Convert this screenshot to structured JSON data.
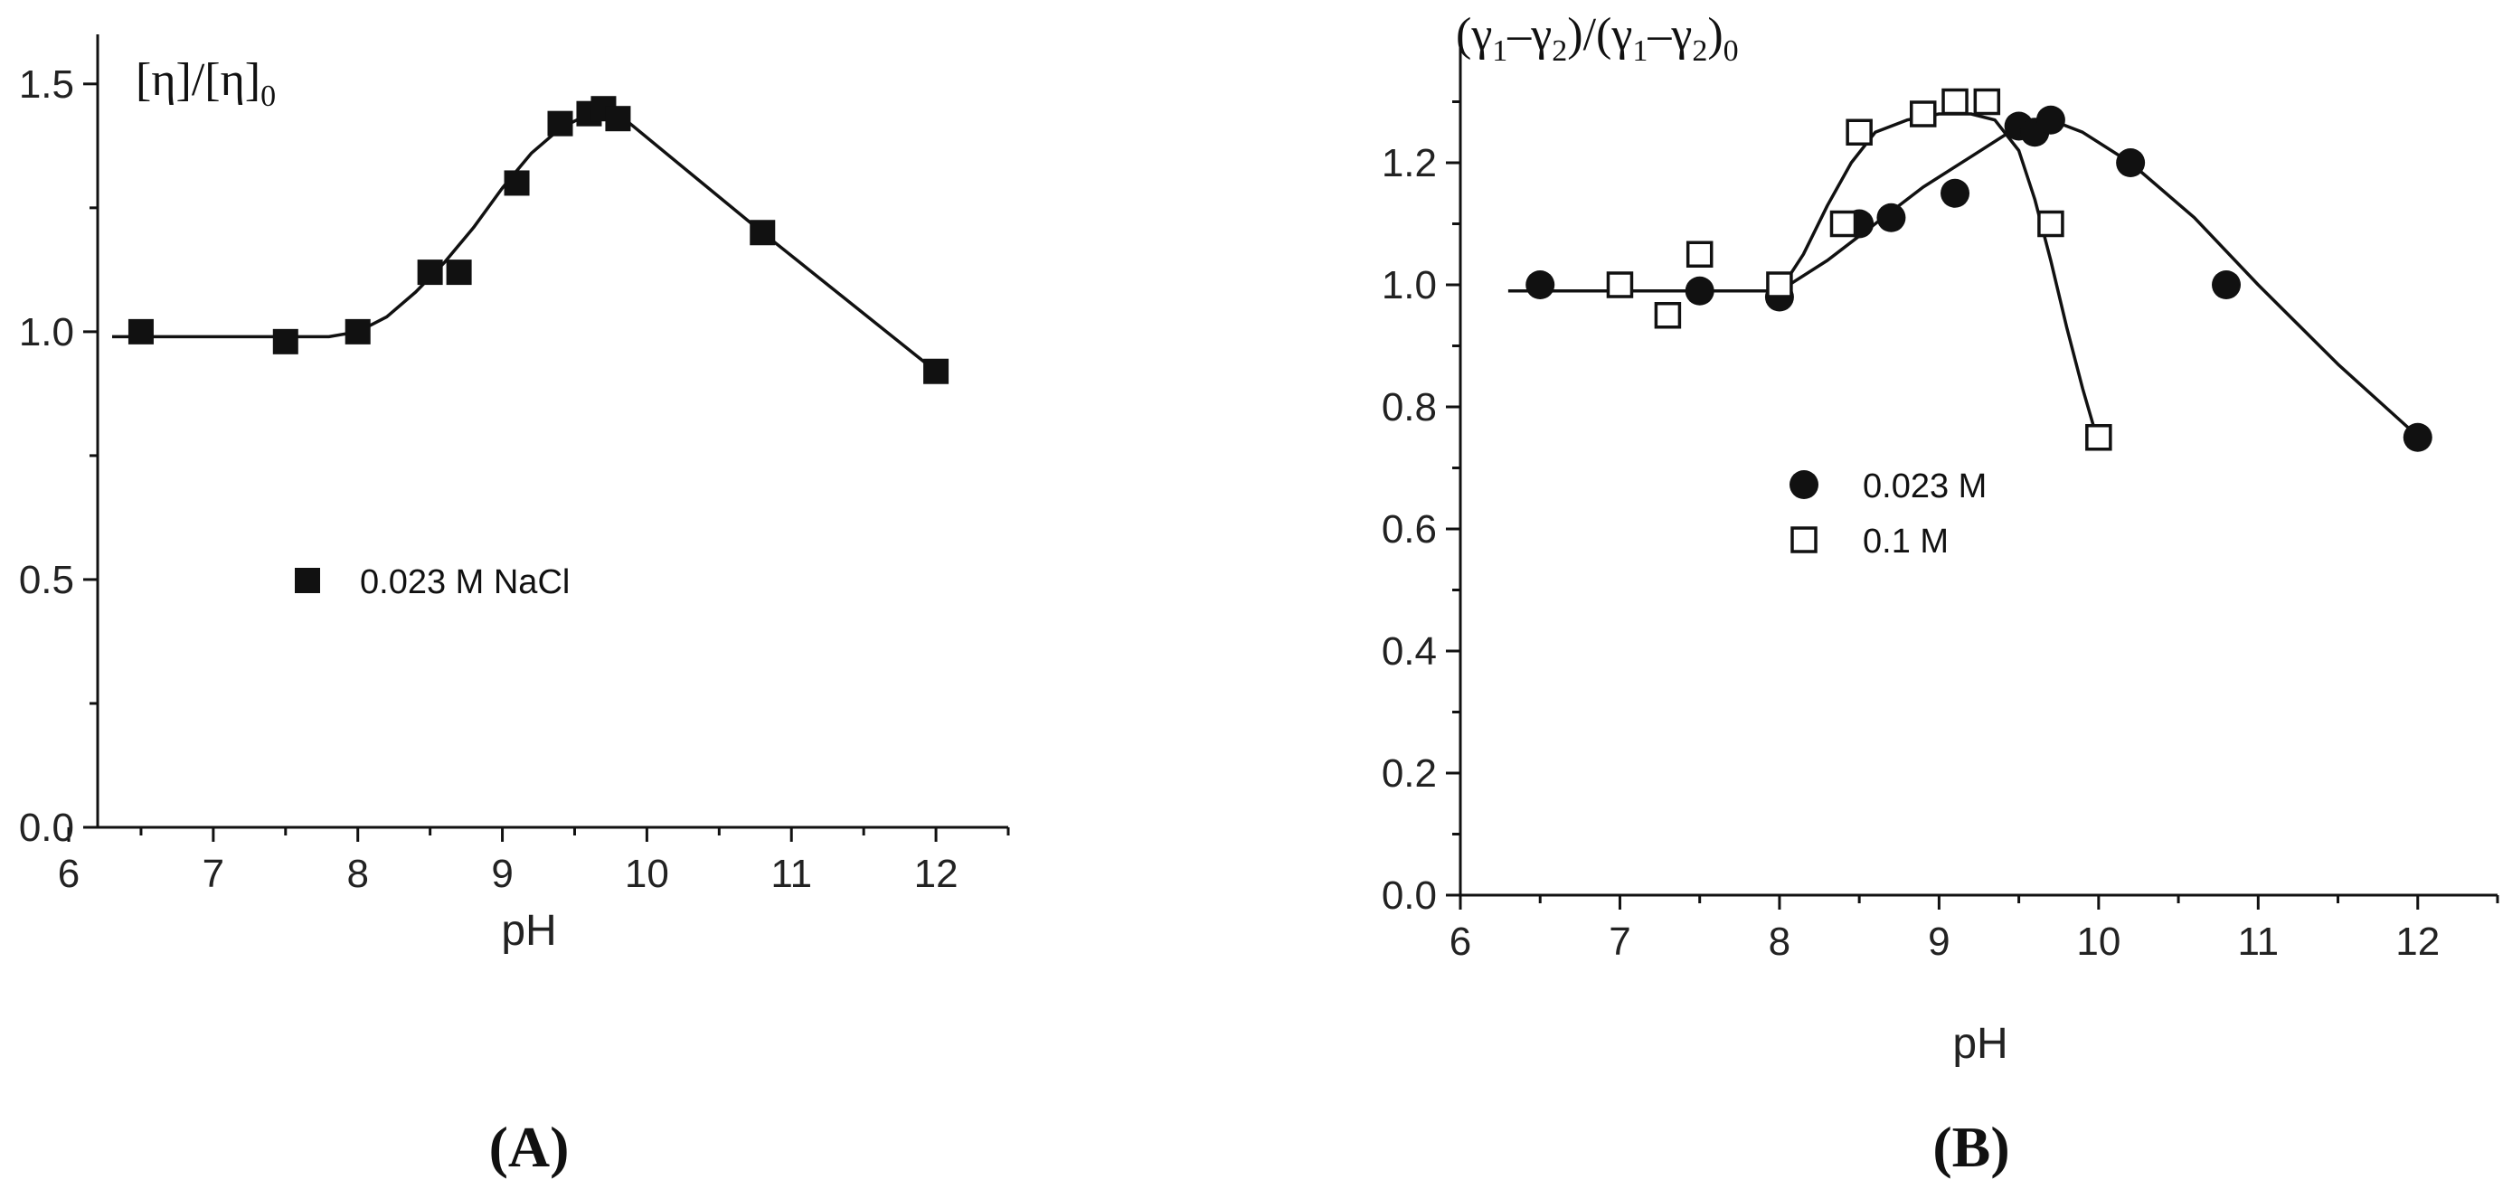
{
  "chart_data": [
    {
      "type": "scatter",
      "panel_label": "(A)",
      "title": "",
      "xlabel": "pH",
      "ylabel_parts": {
        "main": "[η]/[η]",
        "sub": "0"
      },
      "xlim": [
        6.2,
        12.5
      ],
      "ylim": [
        0,
        1.6
      ],
      "x_ticks": [
        6,
        7,
        8,
        9,
        10,
        11,
        12
      ],
      "y_ticks": [
        0.0,
        0.5,
        1.0,
        1.5
      ],
      "y_tick_labels": [
        "0.0",
        "0.5",
        "1.0",
        "1.5"
      ],
      "x_minor_ticks": [
        6.5,
        7.5,
        8.5,
        9.5,
        10.5,
        11.5,
        12.5
      ],
      "y_minor_ticks": [
        0.25,
        0.75,
        1.25
      ],
      "legend_position": "center-left",
      "series": [
        {
          "name": "0.023 M NaCl",
          "marker": "filled-square",
          "x": [
            6.5,
            7.5,
            8.0,
            8.5,
            8.7,
            9.1,
            9.4,
            9.6,
            9.7,
            9.8,
            10.8,
            12.0
          ],
          "y": [
            1.0,
            0.98,
            1.0,
            1.12,
            1.12,
            1.3,
            1.42,
            1.44,
            1.45,
            1.43,
            1.2,
            0.92
          ],
          "fit_curve": {
            "x": [
              6.3,
              7.0,
              7.8,
              8.0,
              8.2,
              8.4,
              8.6,
              8.8,
              9.0,
              9.2,
              9.4,
              9.6,
              9.7,
              9.8,
              10.3,
              10.8,
              11.4,
              12.0
            ],
            "y": [
              0.99,
              0.99,
              0.99,
              1.0,
              1.03,
              1.08,
              1.14,
              1.21,
              1.29,
              1.36,
              1.41,
              1.44,
              1.45,
              1.44,
              1.32,
              1.2,
              1.06,
              0.92
            ]
          }
        }
      ]
    },
    {
      "type": "scatter",
      "panel_label": "(B)",
      "title": "",
      "xlabel": "pH",
      "ylabel_parts": {
        "open1": "(γ",
        "sub1": "1",
        "minus1": "–γ",
        "sub2": "2",
        "mid": ")/(γ",
        "sub3": "1",
        "minus2": "–γ",
        "sub4": "2",
        "close": ")",
        "sub5": "0"
      },
      "xlim": [
        6.0,
        12.5
      ],
      "ylim": [
        0,
        1.4
      ],
      "x_ticks": [
        6,
        7,
        8,
        9,
        10,
        11,
        12
      ],
      "y_ticks": [
        0.0,
        0.2,
        0.4,
        0.6,
        0.8,
        1.0,
        1.2
      ],
      "y_tick_labels": [
        "0.0",
        "0.2",
        "0.4",
        "0.6",
        "0.8",
        "1.0",
        "1.2"
      ],
      "x_minor_ticks": [
        6.5,
        7.5,
        8.5,
        9.5,
        10.5,
        11.5,
        12.5
      ],
      "y_minor_ticks": [
        0.1,
        0.3,
        0.5,
        0.7,
        0.9,
        1.1,
        1.3
      ],
      "legend_position": "center",
      "series": [
        {
          "name": "0.023 M",
          "marker": "filled-circle",
          "x": [
            6.5,
            7.5,
            8.0,
            8.5,
            8.7,
            9.1,
            9.5,
            9.6,
            9.7,
            10.2,
            10.8,
            12.0
          ],
          "y": [
            1.0,
            0.99,
            0.98,
            1.1,
            1.11,
            1.15,
            1.26,
            1.25,
            1.27,
            1.2,
            1.0,
            0.75
          ],
          "fit_curve": {
            "x": [
              6.3,
              7.0,
              8.0,
              8.3,
              8.6,
              8.9,
              9.2,
              9.5,
              9.7,
              9.9,
              10.2,
              10.6,
              11.0,
              11.5,
              12.05
            ],
            "y": [
              0.99,
              0.99,
              0.99,
              1.04,
              1.1,
              1.16,
              1.21,
              1.26,
              1.27,
              1.25,
              1.2,
              1.11,
              1.0,
              0.87,
              0.74
            ]
          }
        },
        {
          "name": "0.1 M",
          "marker": "open-square",
          "x": [
            7.0,
            7.3,
            7.5,
            8.0,
            8.4,
            8.5,
            8.9,
            9.1,
            9.3,
            9.7,
            10.0
          ],
          "y": [
            1.0,
            0.95,
            1.05,
            1.0,
            1.1,
            1.25,
            1.28,
            1.3,
            1.3,
            1.1,
            0.75
          ],
          "fit_curve": {
            "x": [
              8.0,
              8.15,
              8.3,
              8.45,
              8.6,
              8.8,
              9.0,
              9.2,
              9.35,
              9.5,
              9.6,
              9.7,
              9.8,
              9.9,
              10.0
            ],
            "y": [
              0.99,
              1.05,
              1.13,
              1.2,
              1.25,
              1.27,
              1.28,
              1.28,
              1.27,
              1.22,
              1.14,
              1.04,
              0.93,
              0.83,
              0.74
            ]
          }
        }
      ]
    }
  ]
}
